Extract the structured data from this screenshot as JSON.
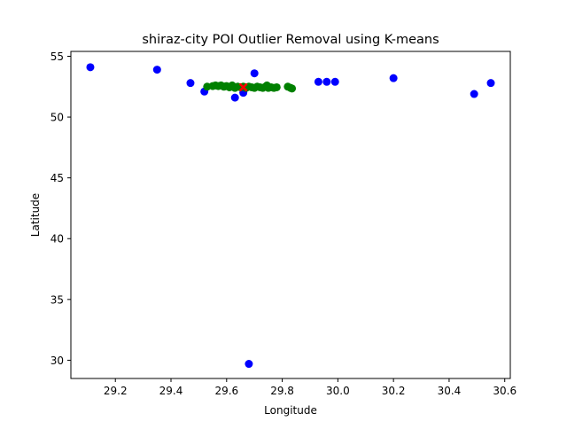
{
  "chart_data": {
    "type": "scatter",
    "title": "shiraz-city POI Outlier Removal using K-means",
    "xlabel": "Longitude",
    "ylabel": "Latitude",
    "xlim": [
      29.04,
      30.62
    ],
    "ylim": [
      28.5,
      55.4
    ],
    "xticks": [
      "29.2",
      "29.4",
      "29.6",
      "29.8",
      "30.0",
      "30.2",
      "30.4",
      "30.6"
    ],
    "xtick_values": [
      29.2,
      29.4,
      29.6,
      29.8,
      30.0,
      30.2,
      30.4,
      30.6
    ],
    "yticks": [
      "30",
      "35",
      "40",
      "45",
      "50",
      "55"
    ],
    "ytick_values": [
      30,
      35,
      40,
      45,
      50,
      55
    ],
    "grid": false,
    "colors": {
      "outlier": "#0000ff",
      "inlier": "#008000",
      "centroid": "#ff0000"
    },
    "series": [
      {
        "values": [
          [
            29.11,
            54.1
          ],
          [
            29.35,
            53.9
          ],
          [
            29.47,
            52.8
          ],
          [
            29.52,
            52.1
          ],
          [
            29.63,
            51.6
          ],
          [
            29.66,
            52.0
          ],
          [
            29.7,
            53.6
          ],
          [
            29.93,
            52.9
          ],
          [
            29.96,
            52.9
          ],
          [
            29.99,
            52.9
          ],
          [
            30.2,
            53.2
          ],
          [
            30.49,
            51.9
          ],
          [
            30.55,
            52.8
          ],
          [
            29.68,
            29.7
          ]
        ]
      },
      {
        "values": [
          [
            29.53,
            52.5
          ],
          [
            29.55,
            52.55
          ],
          [
            29.56,
            52.6
          ],
          [
            29.57,
            52.55
          ],
          [
            29.58,
            52.6
          ],
          [
            29.59,
            52.5
          ],
          [
            29.6,
            52.55
          ],
          [
            29.61,
            52.45
          ],
          [
            29.62,
            52.5
          ],
          [
            29.62,
            52.6
          ],
          [
            29.63,
            52.4
          ],
          [
            29.64,
            52.5
          ],
          [
            29.65,
            52.45
          ],
          [
            29.66,
            52.5
          ],
          [
            29.67,
            52.4
          ],
          [
            29.68,
            52.5
          ],
          [
            29.69,
            52.45
          ],
          [
            29.7,
            52.4
          ],
          [
            29.71,
            52.5
          ],
          [
            29.72,
            52.45
          ],
          [
            29.73,
            52.4
          ],
          [
            29.74,
            52.5
          ],
          [
            29.745,
            52.6
          ],
          [
            29.75,
            52.4
          ],
          [
            29.76,
            52.45
          ],
          [
            29.77,
            52.4
          ],
          [
            29.78,
            52.45
          ],
          [
            29.82,
            52.5
          ],
          [
            29.83,
            52.4
          ],
          [
            29.835,
            52.35
          ]
        ]
      },
      {
        "values": [
          [
            29.66,
            52.45
          ]
        ]
      }
    ]
  }
}
